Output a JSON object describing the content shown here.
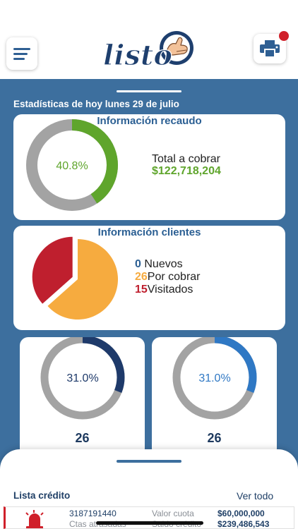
{
  "header": {
    "logo_text": "listo",
    "menu_icon": "hamburger-menu-icon",
    "print_icon": "printer-icon"
  },
  "stats": {
    "title": "Estadísticas de hoy lunes 29 de julio"
  },
  "recaudo": {
    "title": "Información recaudo",
    "percent": 40.8,
    "percent_label": "40.8%",
    "total_label": "Total a cobrar",
    "total_value": "$122,718,204",
    "colors": {
      "filled": "#5fa52c",
      "rest": "#a3a3a3"
    }
  },
  "clientes": {
    "title": "Información clientes",
    "items": [
      {
        "count": "0",
        "label": "Nuevos",
        "color": "#2b5f93"
      },
      {
        "count": "26",
        "label": "Por cobrar",
        "color": "#f6ab3f"
      },
      {
        "count": "15",
        "label": "Visitados",
        "color": "#bf1f2e"
      }
    ],
    "pie_values": [
      0,
      26,
      15
    ]
  },
  "small_cards": [
    {
      "percent": 31.0,
      "percent_label": "31.0%",
      "value": "26",
      "color": "#1e3a6a"
    },
    {
      "percent": 31.0,
      "percent_label": "31.0%",
      "value": "26",
      "color": "#2f78c4"
    }
  ],
  "lista": {
    "title": "Lista crédito",
    "ver_todo": "Ver todo",
    "credit": {
      "phone": "3187191440",
      "ctas_label": "Ctas atrasadas",
      "valor_label": "Valor cuota",
      "valor": "$60,000,000",
      "saldo_label": "Saldo crédito",
      "saldo": "$239,486,543",
      "icon": "alarm-siren-icon"
    }
  }
}
